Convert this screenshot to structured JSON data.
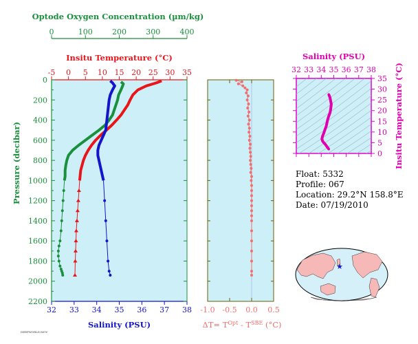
{
  "colors": {
    "oxygen": "#1a8f3c",
    "temperature": "#e8151b",
    "salinity": "#1414c8",
    "delta": "#f07070",
    "ts": "#e000b0",
    "plot_bg": "#cdeff8",
    "frame_ts": "#e000d0",
    "pressure_axis": "#1a8f3c"
  },
  "info": {
    "float": "Float:  5332",
    "profile": "Profile:  067",
    "location": "Location:  29.2°N  158.8°E",
    "date": "Date:  07/19/2010"
  },
  "footer": "DEEPWORLD.MOV",
  "chart_data": [
    {
      "type": "line",
      "panel": "profile",
      "title": "",
      "ylabel": "Pressure (decibar)",
      "ylim": [
        2200,
        0
      ],
      "yticks": [
        0,
        200,
        400,
        600,
        800,
        1000,
        1200,
        1400,
        1600,
        1800,
        2000,
        2200
      ],
      "axes": {
        "oxygen": {
          "label": "Optode Oxygen Concentration (µm/kg)",
          "range": [
            0,
            400
          ],
          "ticks": [
            0,
            100,
            200,
            300,
            400
          ]
        },
        "temperature": {
          "label": "Insitu Temperature (°C)",
          "range": [
            -5,
            35
          ],
          "ticks": [
            -5,
            0,
            5,
            10,
            15,
            20,
            25,
            30,
            35
          ]
        },
        "salinity": {
          "label": "Salinity (PSU)",
          "range": [
            32,
            38
          ],
          "ticks": [
            32,
            33,
            34,
            35,
            36,
            37,
            38
          ]
        }
      },
      "series": [
        {
          "key": "oxygen",
          "x": [
            205,
            212,
            210,
            205,
            198,
            195,
            190,
            185,
            180,
            170,
            158,
            140,
            120,
            100,
            80,
            62,
            50,
            45,
            42,
            40,
            40,
            38,
            36,
            34,
            32,
            30,
            28,
            25,
            22,
            20,
            20,
            22,
            25,
            28,
            30,
            32,
            33
          ],
          "y": [
            20,
            40,
            60,
            100,
            150,
            200,
            250,
            300,
            350,
            400,
            450,
            500,
            550,
            600,
            650,
            700,
            750,
            800,
            850,
            900,
            960,
            1000,
            1100,
            1200,
            1300,
            1400,
            1500,
            1600,
            1650,
            1700,
            1750,
            1800,
            1850,
            1880,
            1900,
            1920,
            1940
          ]
        },
        {
          "key": "temperature",
          "x": [
            27.5,
            26.0,
            23.0,
            20.5,
            19.0,
            18.2,
            17.5,
            16.5,
            15.5,
            14.2,
            12.8,
            11.2,
            9.5,
            8.0,
            6.8,
            5.8,
            5.0,
            4.4,
            4.0,
            3.6,
            3.3,
            3.1,
            2.9,
            2.7,
            2.5,
            2.3,
            2.2,
            2.1,
            2.0,
            1.9
          ],
          "y": [
            10,
            30,
            60,
            100,
            150,
            200,
            250,
            300,
            350,
            400,
            450,
            500,
            550,
            600,
            650,
            700,
            750,
            800,
            850,
            900,
            1000,
            1100,
            1200,
            1300,
            1400,
            1500,
            1600,
            1700,
            1800,
            1940
          ]
        },
        {
          "key": "salinity",
          "x": [
            34.6,
            34.7,
            34.8,
            34.7,
            34.6,
            34.55,
            34.5,
            34.45,
            34.4,
            34.3,
            34.2,
            34.1,
            34.05,
            34.05,
            34.1,
            34.15,
            34.2,
            34.25,
            34.3,
            34.35,
            34.4,
            34.45,
            34.5,
            34.55,
            34.6
          ],
          "y": [
            10,
            30,
            60,
            100,
            150,
            200,
            300,
            400,
            500,
            550,
            600,
            650,
            700,
            750,
            800,
            850,
            900,
            950,
            1000,
            1200,
            1400,
            1600,
            1800,
            1900,
            1940
          ]
        }
      ]
    },
    {
      "type": "scatter",
      "panel": "delta",
      "title": "",
      "xlabel": "ΔT= T",
      "xlabel_sup1": "Opt",
      "xlabel_mid": " - T",
      "xlabel_sup2": "SBE",
      "xlabel_end": " (°C)",
      "xlim": [
        -1.0,
        0.5
      ],
      "xticks": [
        -1.0,
        -0.5,
        0.0,
        0.5
      ],
      "ylim": [
        2200,
        0
      ],
      "series": [
        {
          "key": "delta",
          "x": [
            -0.35,
            -0.22,
            -0.3,
            -0.2,
            -0.15,
            -0.1,
            -0.12,
            -0.08,
            -0.1,
            -0.07,
            -0.09,
            -0.06,
            -0.08,
            -0.05,
            -0.07,
            -0.05,
            -0.06,
            -0.04,
            -0.05,
            -0.03,
            -0.04,
            -0.03,
            -0.02,
            -0.03,
            -0.02,
            -0.01,
            -0.02,
            0.0,
            -0.01,
            0.0,
            0.0,
            0.0,
            0.0,
            0.0,
            0.0,
            0.0,
            0.0,
            0.0,
            0.0,
            0.0,
            0.0,
            0.0,
            0.0
          ],
          "y": [
            5,
            20,
            40,
            60,
            80,
            100,
            130,
            160,
            200,
            240,
            280,
            320,
            360,
            400,
            440,
            480,
            520,
            560,
            600,
            640,
            680,
            720,
            760,
            800,
            840,
            880,
            920,
            960,
            1000,
            1050,
            1100,
            1150,
            1200,
            1250,
            1300,
            1350,
            1400,
            1500,
            1600,
            1700,
            1800,
            1900,
            1940
          ]
        }
      ]
    },
    {
      "type": "line",
      "panel": "ts",
      "title": "",
      "xlabel": "Salinity (PSU)",
      "ylabel": "Insitu Temperature (°C)",
      "xlim": [
        32,
        38
      ],
      "xticks": [
        32,
        33,
        34,
        35,
        36,
        37,
        38
      ],
      "ylim": [
        0,
        35
      ],
      "yticks": [
        0,
        5,
        10,
        15,
        20,
        25,
        30,
        35
      ],
      "series": [
        {
          "key": "ts",
          "x": [
            34.6,
            34.7,
            34.8,
            34.75,
            34.7,
            34.65,
            34.6,
            34.55,
            34.5,
            34.45,
            34.4,
            34.3,
            34.2,
            34.1,
            34.05,
            34.1,
            34.2,
            34.3,
            34.4,
            34.5,
            34.6
          ],
          "y": [
            27.5,
            26.0,
            23.0,
            20.5,
            19.0,
            18.2,
            17.5,
            16.5,
            15.5,
            14.2,
            12.8,
            11.2,
            9.5,
            8.0,
            6.8,
            5.8,
            5.0,
            4.4,
            3.6,
            2.8,
            2.0
          ]
        }
      ]
    }
  ]
}
